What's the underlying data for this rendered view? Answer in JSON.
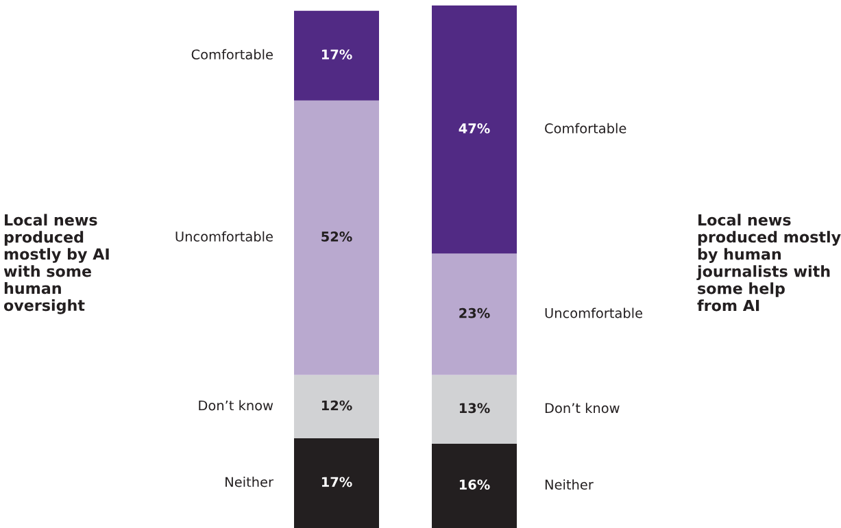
{
  "chart_data": {
    "type": "bar",
    "stacked": true,
    "legend": false,
    "categories": [
      "Local news\nproduced\nmostly by AI\nwith some\nhuman\noversight",
      "Local news\nproduced mostly\nby human\njournalists with\nsome help\nfrom AI"
    ],
    "series": [
      {
        "name": "Neither",
        "color": "#231f20",
        "values": [
          17,
          16
        ],
        "value_labels": [
          "17%",
          "16%"
        ]
      },
      {
        "name": "Don’t know",
        "color": "#d1d2d4",
        "values": [
          12,
          13
        ],
        "value_labels": [
          "12%",
          "13%"
        ]
      },
      {
        "name": "Uncomfortable",
        "color": "#b9a9cf",
        "values": [
          52,
          23
        ],
        "value_labels": [
          "52%",
          "23%"
        ]
      },
      {
        "name": "Comfortable",
        "color": "#512a84",
        "values": [
          17,
          47
        ],
        "value_labels": [
          "17%",
          "47%"
        ]
      }
    ]
  }
}
